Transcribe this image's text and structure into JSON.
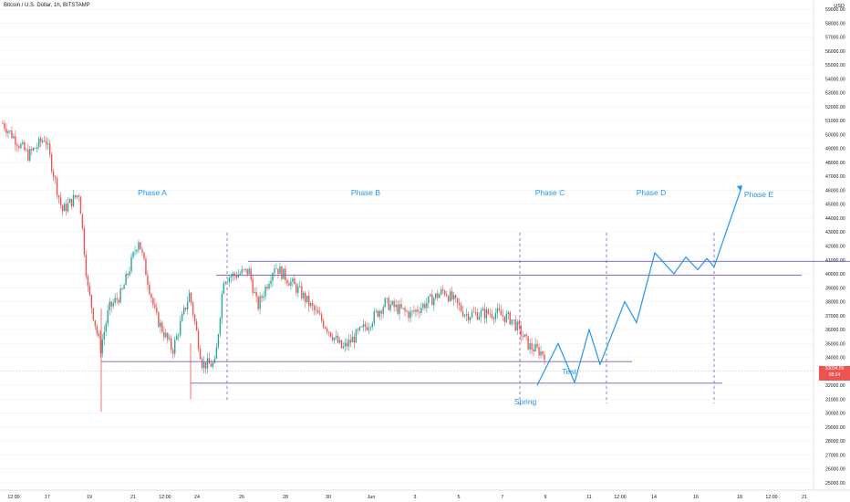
{
  "header": {
    "title": "Bitcoin / U.S. Dollar, 1h, BITSTAMP"
  },
  "currency": "USD",
  "price_badge": {
    "price": "33034.56",
    "countdown": "08:24"
  },
  "colors": {
    "up": "#26a69a",
    "down": "#ef5350",
    "annotation": "#2196f3",
    "level": "#7e57c2",
    "grid": "#eef1f6",
    "axis_text": "#131722"
  },
  "chart_data": {
    "type": "candlestick",
    "title": "Bitcoin / U.S. Dollar, 1h, BITSTAMP",
    "ylabel": "USD",
    "ylim": [
      24500,
      59500
    ],
    "y_ticks": [
      "25000.00",
      "26000.00",
      "27000.00",
      "28000.00",
      "29000.00",
      "30000.00",
      "31000.00",
      "32000.00",
      "33000.00",
      "34000.00",
      "35000.00",
      "36000.00",
      "37000.00",
      "38000.00",
      "39000.00",
      "40000.00",
      "41000.00",
      "42000.00",
      "43000.00",
      "44000.00",
      "45000.00",
      "46000.00",
      "47000.00",
      "48000.00",
      "49000.00",
      "50000.00",
      "51000.00",
      "52000.00",
      "53000.00",
      "54000.00",
      "55000.00",
      "56000.00",
      "57000.00",
      "58000.00",
      "59000.00"
    ],
    "x_ticks": [
      "12:00",
      "17",
      "19",
      "21",
      "12:00",
      "24",
      "26",
      "28",
      "30",
      "Jun",
      "3",
      "5",
      "7",
      "9",
      "11",
      "12:00",
      "14",
      "16",
      "18",
      "12:00",
      "21"
    ],
    "price_path": [
      [
        0.0,
        50800
      ],
      [
        0.03,
        48500
      ],
      [
        0.05,
        49800
      ],
      [
        0.07,
        44500
      ],
      [
        0.09,
        45800
      ],
      [
        0.1,
        39000
      ],
      [
        0.115,
        34600
      ],
      [
        0.125,
        37500
      ],
      [
        0.14,
        38600
      ],
      [
        0.16,
        42500
      ],
      [
        0.18,
        37000
      ],
      [
        0.2,
        34500
      ],
      [
        0.22,
        38600
      ],
      [
        0.235,
        33500
      ],
      [
        0.25,
        33500
      ],
      [
        0.26,
        39700
      ],
      [
        0.29,
        40200
      ],
      [
        0.3,
        37600
      ],
      [
        0.32,
        40600
      ],
      [
        0.35,
        38700
      ],
      [
        0.38,
        36300
      ],
      [
        0.4,
        34600
      ],
      [
        0.43,
        36400
      ],
      [
        0.45,
        37900
      ],
      [
        0.48,
        37100
      ],
      [
        0.52,
        38800
      ],
      [
        0.545,
        37100
      ],
      [
        0.58,
        37200
      ],
      [
        0.6,
        36700
      ],
      [
        0.62,
        34800
      ],
      [
        0.64,
        34200
      ]
    ],
    "volume_profile": true,
    "levels": [
      {
        "name": "upper-resistance",
        "price": 40900
      },
      {
        "name": "upper-range",
        "price": 39900
      },
      {
        "name": "lower-range",
        "price": 33700
      },
      {
        "name": "support",
        "price": 32150
      }
    ],
    "projection": [
      [
        32000
      ],
      [
        35000
      ],
      [
        32200
      ],
      [
        36000
      ],
      [
        33500
      ],
      [
        38000
      ],
      [
        36500
      ],
      [
        41500
      ],
      [
        40000
      ],
      [
        41200
      ],
      [
        40300
      ],
      [
        41100
      ],
      [
        40500
      ],
      [
        46200
      ]
    ],
    "phases": [
      "Phase A",
      "Phase B",
      "Phase C",
      "Phase D",
      "Phase E"
    ],
    "annotations": [
      "Spring",
      "Test"
    ]
  }
}
